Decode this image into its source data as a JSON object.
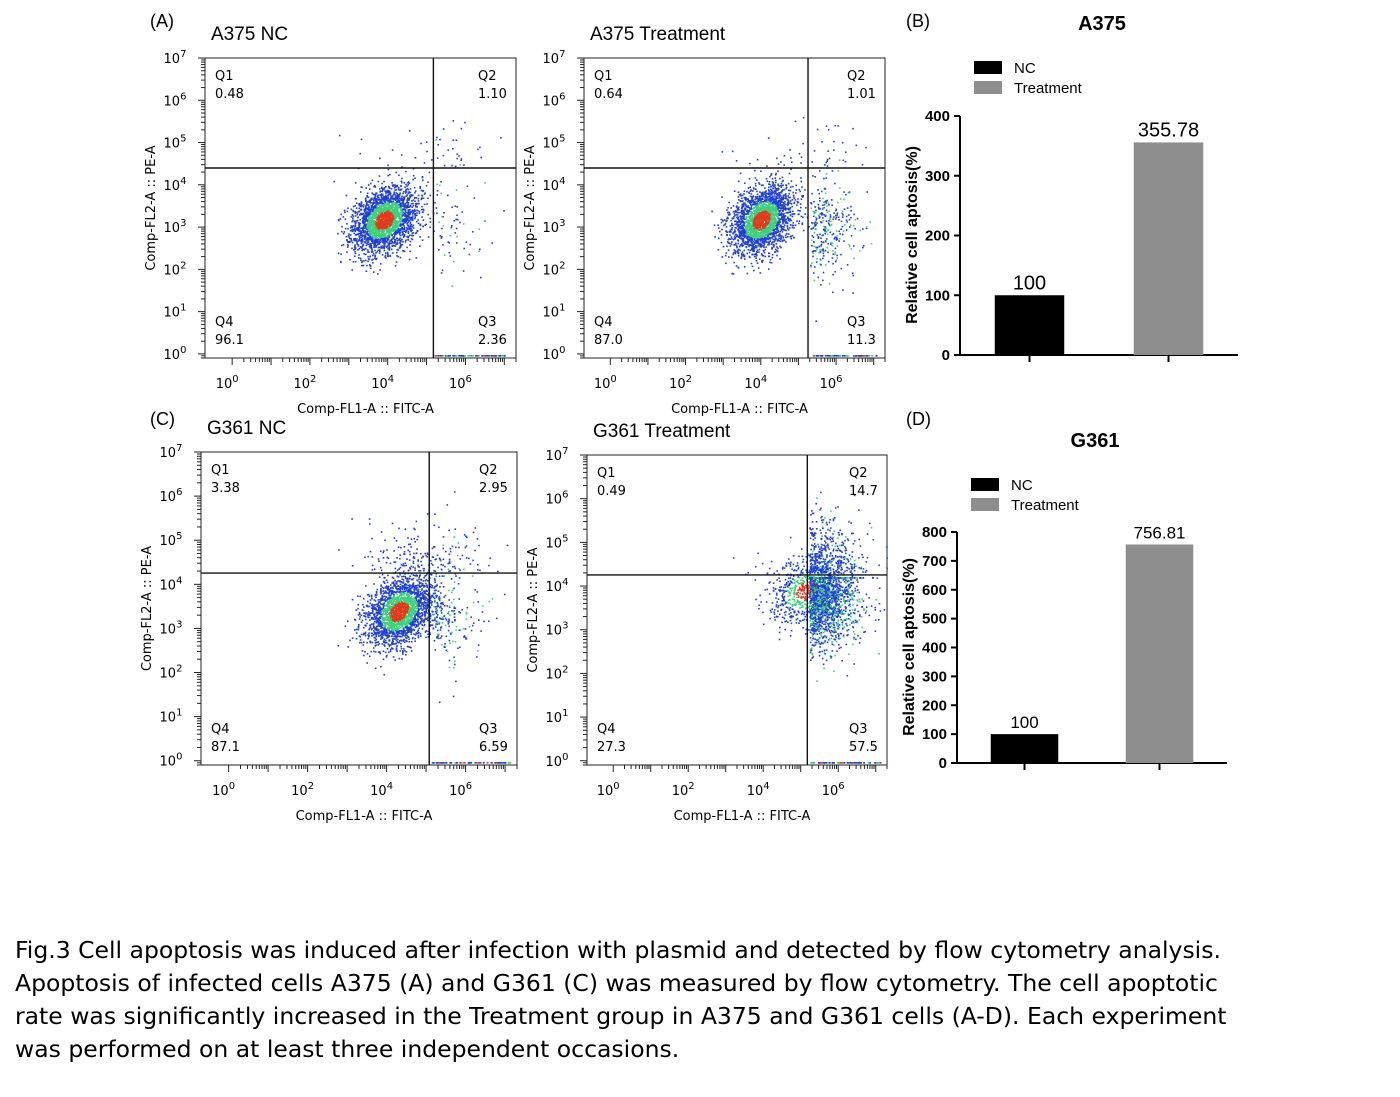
{
  "panels": {
    "A": "(A)",
    "B": "(B)",
    "C": "(C)",
    "D": "(D)"
  },
  "caption_lines": [
    "Fig.3 Cell apoptosis was induced after infection with plasmid and detected by flow cytometry analysis.",
    "Apoptosis of infected cells A375 (A) and G361 (C) was measured by flow cytometry. The cell apoptotic",
    "rate was significantly increased in the Treatment  group in A375 and G361 cells (A-D). Each experiment",
    "was performed on at least three independent occasions."
  ],
  "colors": {
    "nc_bar": "#000000",
    "treatment_bar": "#8e8e8e",
    "density_low": "#1f3fd6",
    "density_mid": "#3fd07a",
    "density_high": "#e03b1c"
  },
  "chart_data": [
    {
      "type": "scatter",
      "panel": "A",
      "title": "A375 NC",
      "xlabel": "Comp-FL1-A :: FITC-A",
      "ylabel": "Comp-FL2-A :: PE-A",
      "x_scale": "log",
      "y_scale": "log",
      "xlim": [
        0.2,
        20000000
      ],
      "ylim": [
        0.8,
        10000000
      ],
      "x_ticks": [
        "10^0",
        "10^2",
        "10^4",
        "10^6"
      ],
      "y_ticks": [
        "10^0",
        "10^1",
        "10^2",
        "10^3",
        "10^4",
        "10^5",
        "10^6",
        "10^7"
      ],
      "gate": {
        "x": 150000,
        "y": 25000
      },
      "quadrants": {
        "Q1": "0.48",
        "Q2": "1.10",
        "Q3": "2.36",
        "Q4": "96.1"
      },
      "population_center": {
        "x": 8000,
        "y": 1500
      }
    },
    {
      "type": "scatter",
      "panel": "A",
      "title": "A375 Treatment",
      "xlabel": "Comp-FL1-A :: FITC-A",
      "ylabel": "Comp-FL2-A :: PE-A",
      "x_scale": "log",
      "y_scale": "log",
      "xlim": [
        0.2,
        20000000
      ],
      "ylim": [
        0.8,
        10000000
      ],
      "x_ticks": [
        "10^0",
        "10^2",
        "10^4",
        "10^6"
      ],
      "y_ticks": [
        "10^0",
        "10^1",
        "10^2",
        "10^3",
        "10^4",
        "10^5",
        "10^6",
        "10^7"
      ],
      "gate": {
        "x": 180000,
        "y": 25000
      },
      "quadrants": {
        "Q1": "0.64",
        "Q2": "1.01",
        "Q3": "11.3",
        "Q4": "87.0"
      },
      "population_center": {
        "x": 10000,
        "y": 1500
      }
    },
    {
      "type": "bar",
      "panel": "B",
      "title": "A375",
      "categories": [
        "NC",
        "Treatment"
      ],
      "values": [
        100,
        355.78
      ],
      "value_labels": [
        "100",
        "355.78"
      ],
      "legend": [
        "NC",
        "Treatment"
      ],
      "legend_position": "top-left",
      "ylabel": "Relative cell aptosis(%)",
      "ylim": [
        0,
        400
      ],
      "y_ticks": [
        "0",
        "100",
        "200",
        "300",
        "400"
      ]
    },
    {
      "type": "scatter",
      "panel": "C",
      "title": "G361 NC",
      "xlabel": "Comp-FL1-A :: FITC-A",
      "ylabel": "Comp-FL2-A :: PE-A",
      "x_scale": "log",
      "y_scale": "log",
      "xlim": [
        0.2,
        20000000
      ],
      "ylim": [
        0.8,
        10000000
      ],
      "x_ticks": [
        "10^0",
        "10^2",
        "10^4",
        "10^6"
      ],
      "y_ticks": [
        "10^0",
        "10^1",
        "10^2",
        "10^3",
        "10^4",
        "10^5",
        "10^6",
        "10^7"
      ],
      "gate": {
        "x": 120000,
        "y": 18000
      },
      "quadrants": {
        "Q1": "3.38",
        "Q2": "2.95",
        "Q3": "6.59",
        "Q4": "87.1"
      },
      "population_center": {
        "x": 20000,
        "y": 2500
      }
    },
    {
      "type": "scatter",
      "panel": "C",
      "title": "G361 Treatment",
      "xlabel": "Comp-FL1-A :: FITC-A",
      "ylabel": "Comp-FL2-A :: PE-A",
      "x_scale": "log",
      "y_scale": "log",
      "xlim": [
        0.2,
        20000000
      ],
      "ylim": [
        0.8,
        10000000
      ],
      "x_ticks": [
        "10^0",
        "10^2",
        "10^4",
        "10^6"
      ],
      "y_ticks": [
        "10^0",
        "10^1",
        "10^2",
        "10^3",
        "10^4",
        "10^5",
        "10^6",
        "10^7"
      ],
      "gate": {
        "x": 150000,
        "y": 18000
      },
      "quadrants": {
        "Q1": "0.49",
        "Q2": "14.7",
        "Q3": "57.5",
        "Q4": "27.3"
      },
      "population_center": {
        "x": 150000,
        "y": 8000
      }
    },
    {
      "type": "bar",
      "panel": "D",
      "title": "G361",
      "categories": [
        "NC",
        "Treatment"
      ],
      "values": [
        100,
        756.81
      ],
      "value_labels": [
        "100",
        "756.81"
      ],
      "legend": [
        "NC",
        "Treatment"
      ],
      "legend_position": "top-left",
      "ylabel": "Relative cell aptosis(%)",
      "ylim": [
        0,
        800
      ],
      "y_ticks": [
        "0",
        "100",
        "200",
        "300",
        "400",
        "500",
        "600",
        "700",
        "800"
      ]
    }
  ]
}
